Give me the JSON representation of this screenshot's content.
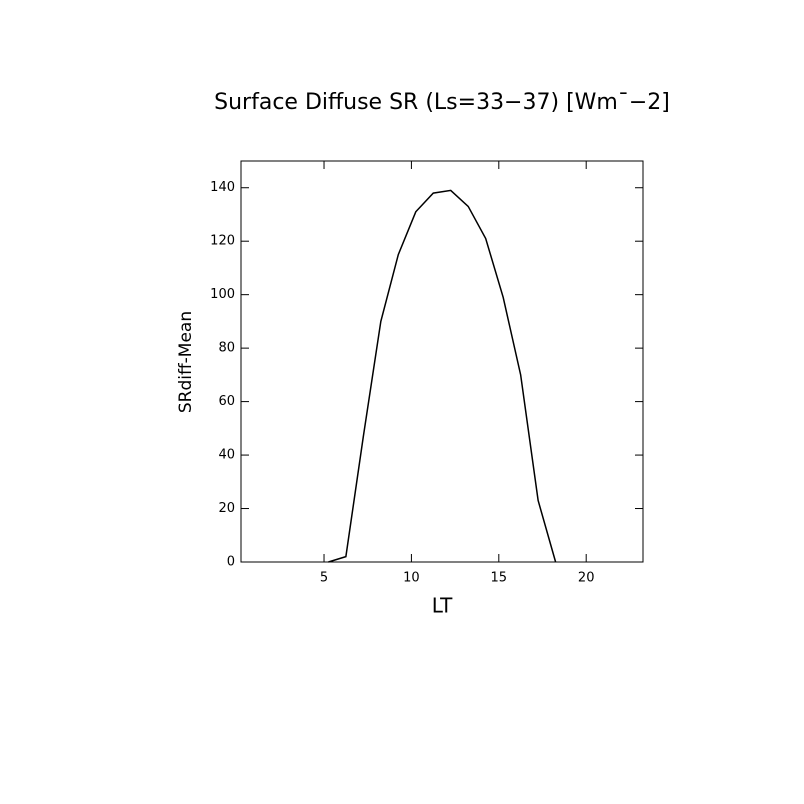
{
  "chart_data": {
    "type": "line",
    "title": "Surface Diffuse SR (Ls=33−37) [Wm¯−2]",
    "x_label": "LT",
    "y_label": "SRdiff-Mean",
    "x": [
      5.25,
      6.25,
      7.25,
      8.25,
      9.25,
      10.25,
      11.25,
      12.25,
      13.25,
      14.25,
      15.25,
      16.25,
      17.25,
      18.25
    ],
    "series": [
      {
        "color": "#000000",
        "values": [
          0,
          2,
          47,
          90,
          115,
          131,
          138,
          139,
          133,
          121,
          99,
          70,
          23,
          0
        ]
      }
    ],
    "xlim": [
      0.25,
      23.25
    ],
    "xticks": [
      5,
      10,
      15,
      20
    ],
    "ylim": [
      0,
      150
    ],
    "yticks": [
      0,
      20,
      40,
      60,
      80,
      100,
      120,
      140
    ]
  }
}
